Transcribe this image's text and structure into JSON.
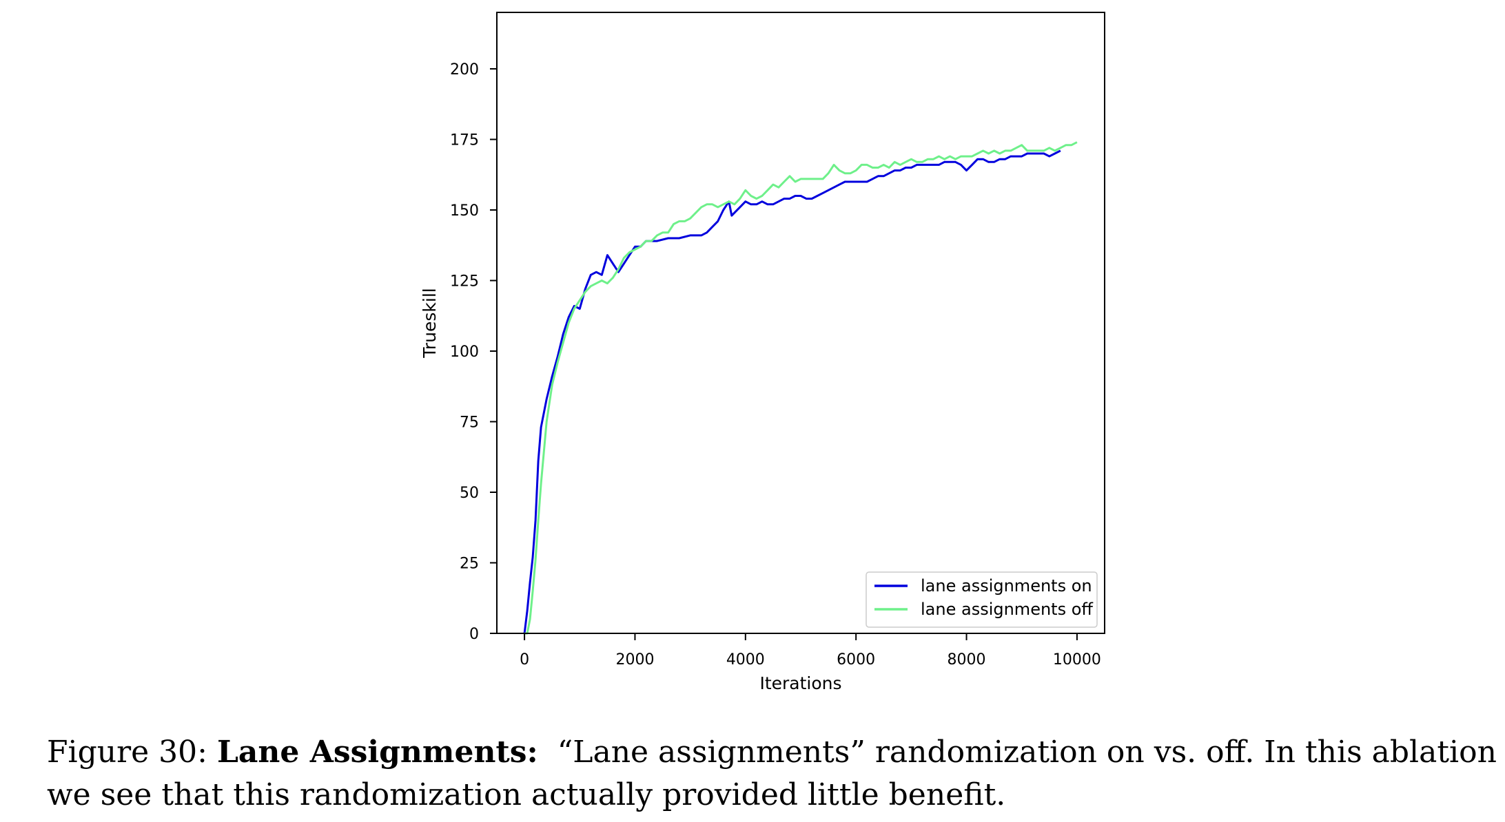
{
  "chart_data": {
    "type": "line",
    "title": "",
    "xlabel": "Iterations",
    "ylabel": "Trueskill",
    "xlim": [
      -500,
      10500
    ],
    "ylim": [
      0,
      220
    ],
    "xticks": [
      0,
      2000,
      4000,
      6000,
      8000,
      10000
    ],
    "yticks": [
      0,
      25,
      50,
      75,
      100,
      125,
      150,
      175,
      200
    ],
    "legend_position": "lower-right",
    "grid": false,
    "series": [
      {
        "name": "lane assignments on",
        "color": "#0000dd",
        "x": [
          0,
          50,
          100,
          150,
          200,
          250,
          300,
          400,
          500,
          600,
          700,
          800,
          900,
          1000,
          1100,
          1200,
          1300,
          1400,
          1500,
          1600,
          1700,
          1800,
          1900,
          2000,
          2100,
          2200,
          2400,
          2600,
          2800,
          3000,
          3200,
          3300,
          3400,
          3500,
          3600,
          3700,
          3750,
          3800,
          3900,
          4000,
          4100,
          4200,
          4300,
          4400,
          4500,
          4600,
          4700,
          4800,
          4900,
          5000,
          5100,
          5200,
          5300,
          5400,
          5500,
          5600,
          5700,
          5800,
          5900,
          6000,
          6100,
          6200,
          6300,
          6400,
          6500,
          6600,
          6700,
          6800,
          6900,
          7000,
          7100,
          7200,
          7300,
          7400,
          7500,
          7600,
          7700,
          7800,
          7900,
          8000,
          8100,
          8200,
          8300,
          8400,
          8500,
          8600,
          8700,
          8800,
          8900,
          9000,
          9100,
          9200,
          9300,
          9400,
          9500,
          9600,
          9700
        ],
        "y": [
          0,
          8,
          18,
          27,
          40,
          61,
          73,
          83,
          91,
          98,
          106,
          112,
          116,
          115,
          122,
          127,
          128,
          127,
          134,
          131,
          128,
          131,
          134,
          137,
          137,
          139,
          139,
          140,
          140,
          141,
          141,
          142,
          144,
          146,
          150,
          153,
          148,
          149,
          151,
          153,
          152,
          152,
          153,
          152,
          152,
          153,
          154,
          154,
          155,
          155,
          154,
          154,
          155,
          156,
          157,
          158,
          159,
          160,
          160,
          160,
          160,
          160,
          161,
          162,
          162,
          163,
          164,
          164,
          165,
          165,
          166,
          166,
          166,
          166,
          166,
          167,
          167,
          167,
          166,
          164,
          166,
          168,
          168,
          167,
          167,
          168,
          168,
          169,
          169,
          169,
          170,
          170,
          170,
          170,
          169,
          170,
          171
        ]
      },
      {
        "name": "lane assignments off",
        "color": "#6ef08a",
        "x": [
          0,
          50,
          100,
          150,
          200,
          250,
          300,
          400,
          500,
          600,
          700,
          800,
          900,
          1000,
          1100,
          1200,
          1300,
          1400,
          1500,
          1600,
          1700,
          1800,
          1900,
          2000,
          2100,
          2200,
          2300,
          2400,
          2500,
          2600,
          2700,
          2800,
          2900,
          3000,
          3100,
          3200,
          3300,
          3400,
          3500,
          3600,
          3700,
          3800,
          3900,
          4000,
          4100,
          4200,
          4300,
          4400,
          4500,
          4600,
          4700,
          4800,
          4900,
          5000,
          5100,
          5200,
          5300,
          5400,
          5500,
          5600,
          5700,
          5800,
          5900,
          6000,
          6100,
          6200,
          6300,
          6400,
          6500,
          6600,
          6700,
          6800,
          6900,
          7000,
          7100,
          7200,
          7300,
          7400,
          7500,
          7600,
          7700,
          7800,
          7900,
          8000,
          8100,
          8200,
          8300,
          8400,
          8500,
          8600,
          8700,
          8800,
          8900,
          9000,
          9100,
          9200,
          9300,
          9400,
          9500,
          9600,
          9700,
          9800,
          9900,
          10000
        ],
        "y": [
          0,
          0,
          5,
          15,
          26,
          40,
          53,
          75,
          88,
          96,
          103,
          110,
          115,
          118,
          121,
          123,
          124,
          125,
          124,
          126,
          129,
          133,
          135,
          136,
          137,
          139,
          139,
          141,
          142,
          142,
          145,
          146,
          146,
          147,
          149,
          151,
          152,
          152,
          151,
          152,
          153,
          152,
          154,
          157,
          155,
          154,
          155,
          157,
          159,
          158,
          160,
          162,
          160,
          161,
          161,
          161,
          161,
          161,
          163,
          166,
          164,
          163,
          163,
          164,
          166,
          166,
          165,
          165,
          166,
          165,
          167,
          166,
          167,
          168,
          167,
          167,
          168,
          168,
          169,
          168,
          169,
          168,
          169,
          169,
          169,
          170,
          171,
          170,
          171,
          170,
          171,
          171,
          172,
          173,
          171,
          171,
          171,
          171,
          172,
          171,
          172,
          173,
          173,
          174
        ]
      }
    ]
  },
  "caption": {
    "figure_label": "Figure 30:",
    "title_bold": "Lane Assignments:",
    "line1_rest": "“Lane assignments” randomization on vs. off. In this ablation",
    "line2": "we see that this randomization actually provided little benefit."
  }
}
